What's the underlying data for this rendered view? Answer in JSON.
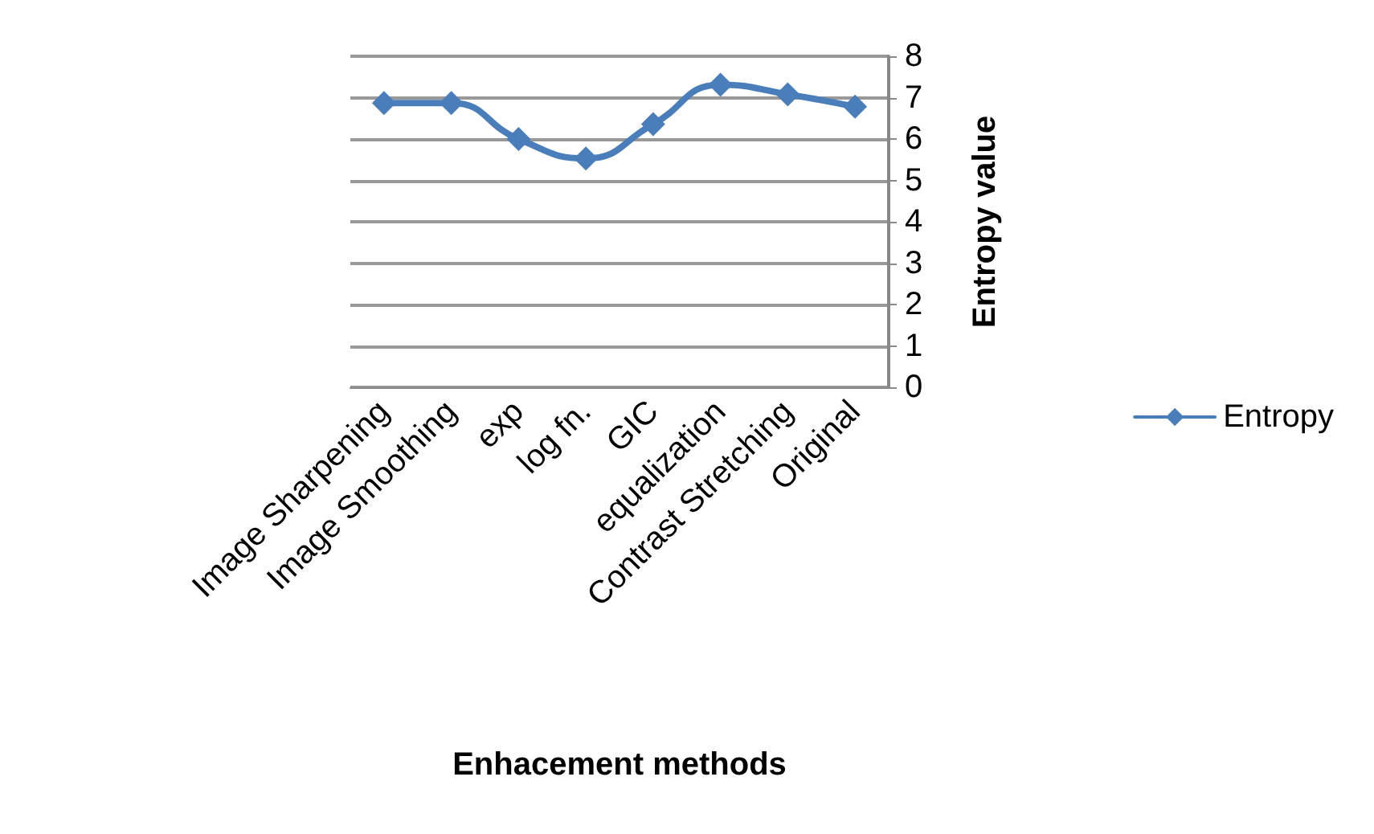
{
  "chart_data": {
    "type": "line",
    "xlabel": "Enhacement methods",
    "ylabel": "Entropy value",
    "categories": [
      "Image Sharpening",
      "Image Smoothing",
      "exp",
      "log fn.",
      "GIC",
      "equalization",
      "Contrast Stretching",
      "Original"
    ],
    "series": [
      {
        "name": "Entropy",
        "color": "#4a7ebb",
        "values": [
          6.87,
          6.87,
          6.0,
          5.53,
          6.36,
          7.31,
          7.08,
          6.78
        ]
      }
    ],
    "ylim": [
      0,
      8
    ],
    "yticks": [
      0,
      1,
      2,
      3,
      4,
      5,
      6,
      7,
      8
    ],
    "grid": "y",
    "legend": "right",
    "marker": "diamond",
    "line_style": "solid"
  }
}
